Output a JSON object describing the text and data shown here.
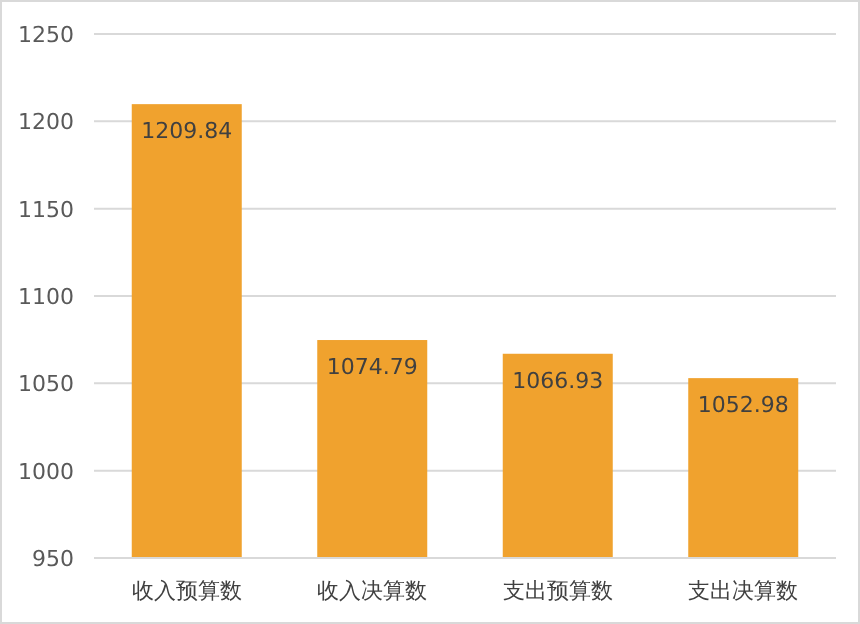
{
  "chart_data": {
    "type": "bar",
    "categories": [
      "收入预算数",
      "收入决算数",
      "支出预算数",
      "支出决算数"
    ],
    "values": [
      1209.84,
      1074.79,
      1066.93,
      1052.98
    ],
    "color": "#f0a22e",
    "ylim": [
      950,
      1250
    ],
    "yticks": [
      950,
      1000,
      1050,
      1100,
      1150,
      1200,
      1250
    ],
    "grid": "y",
    "data_labels": true
  }
}
